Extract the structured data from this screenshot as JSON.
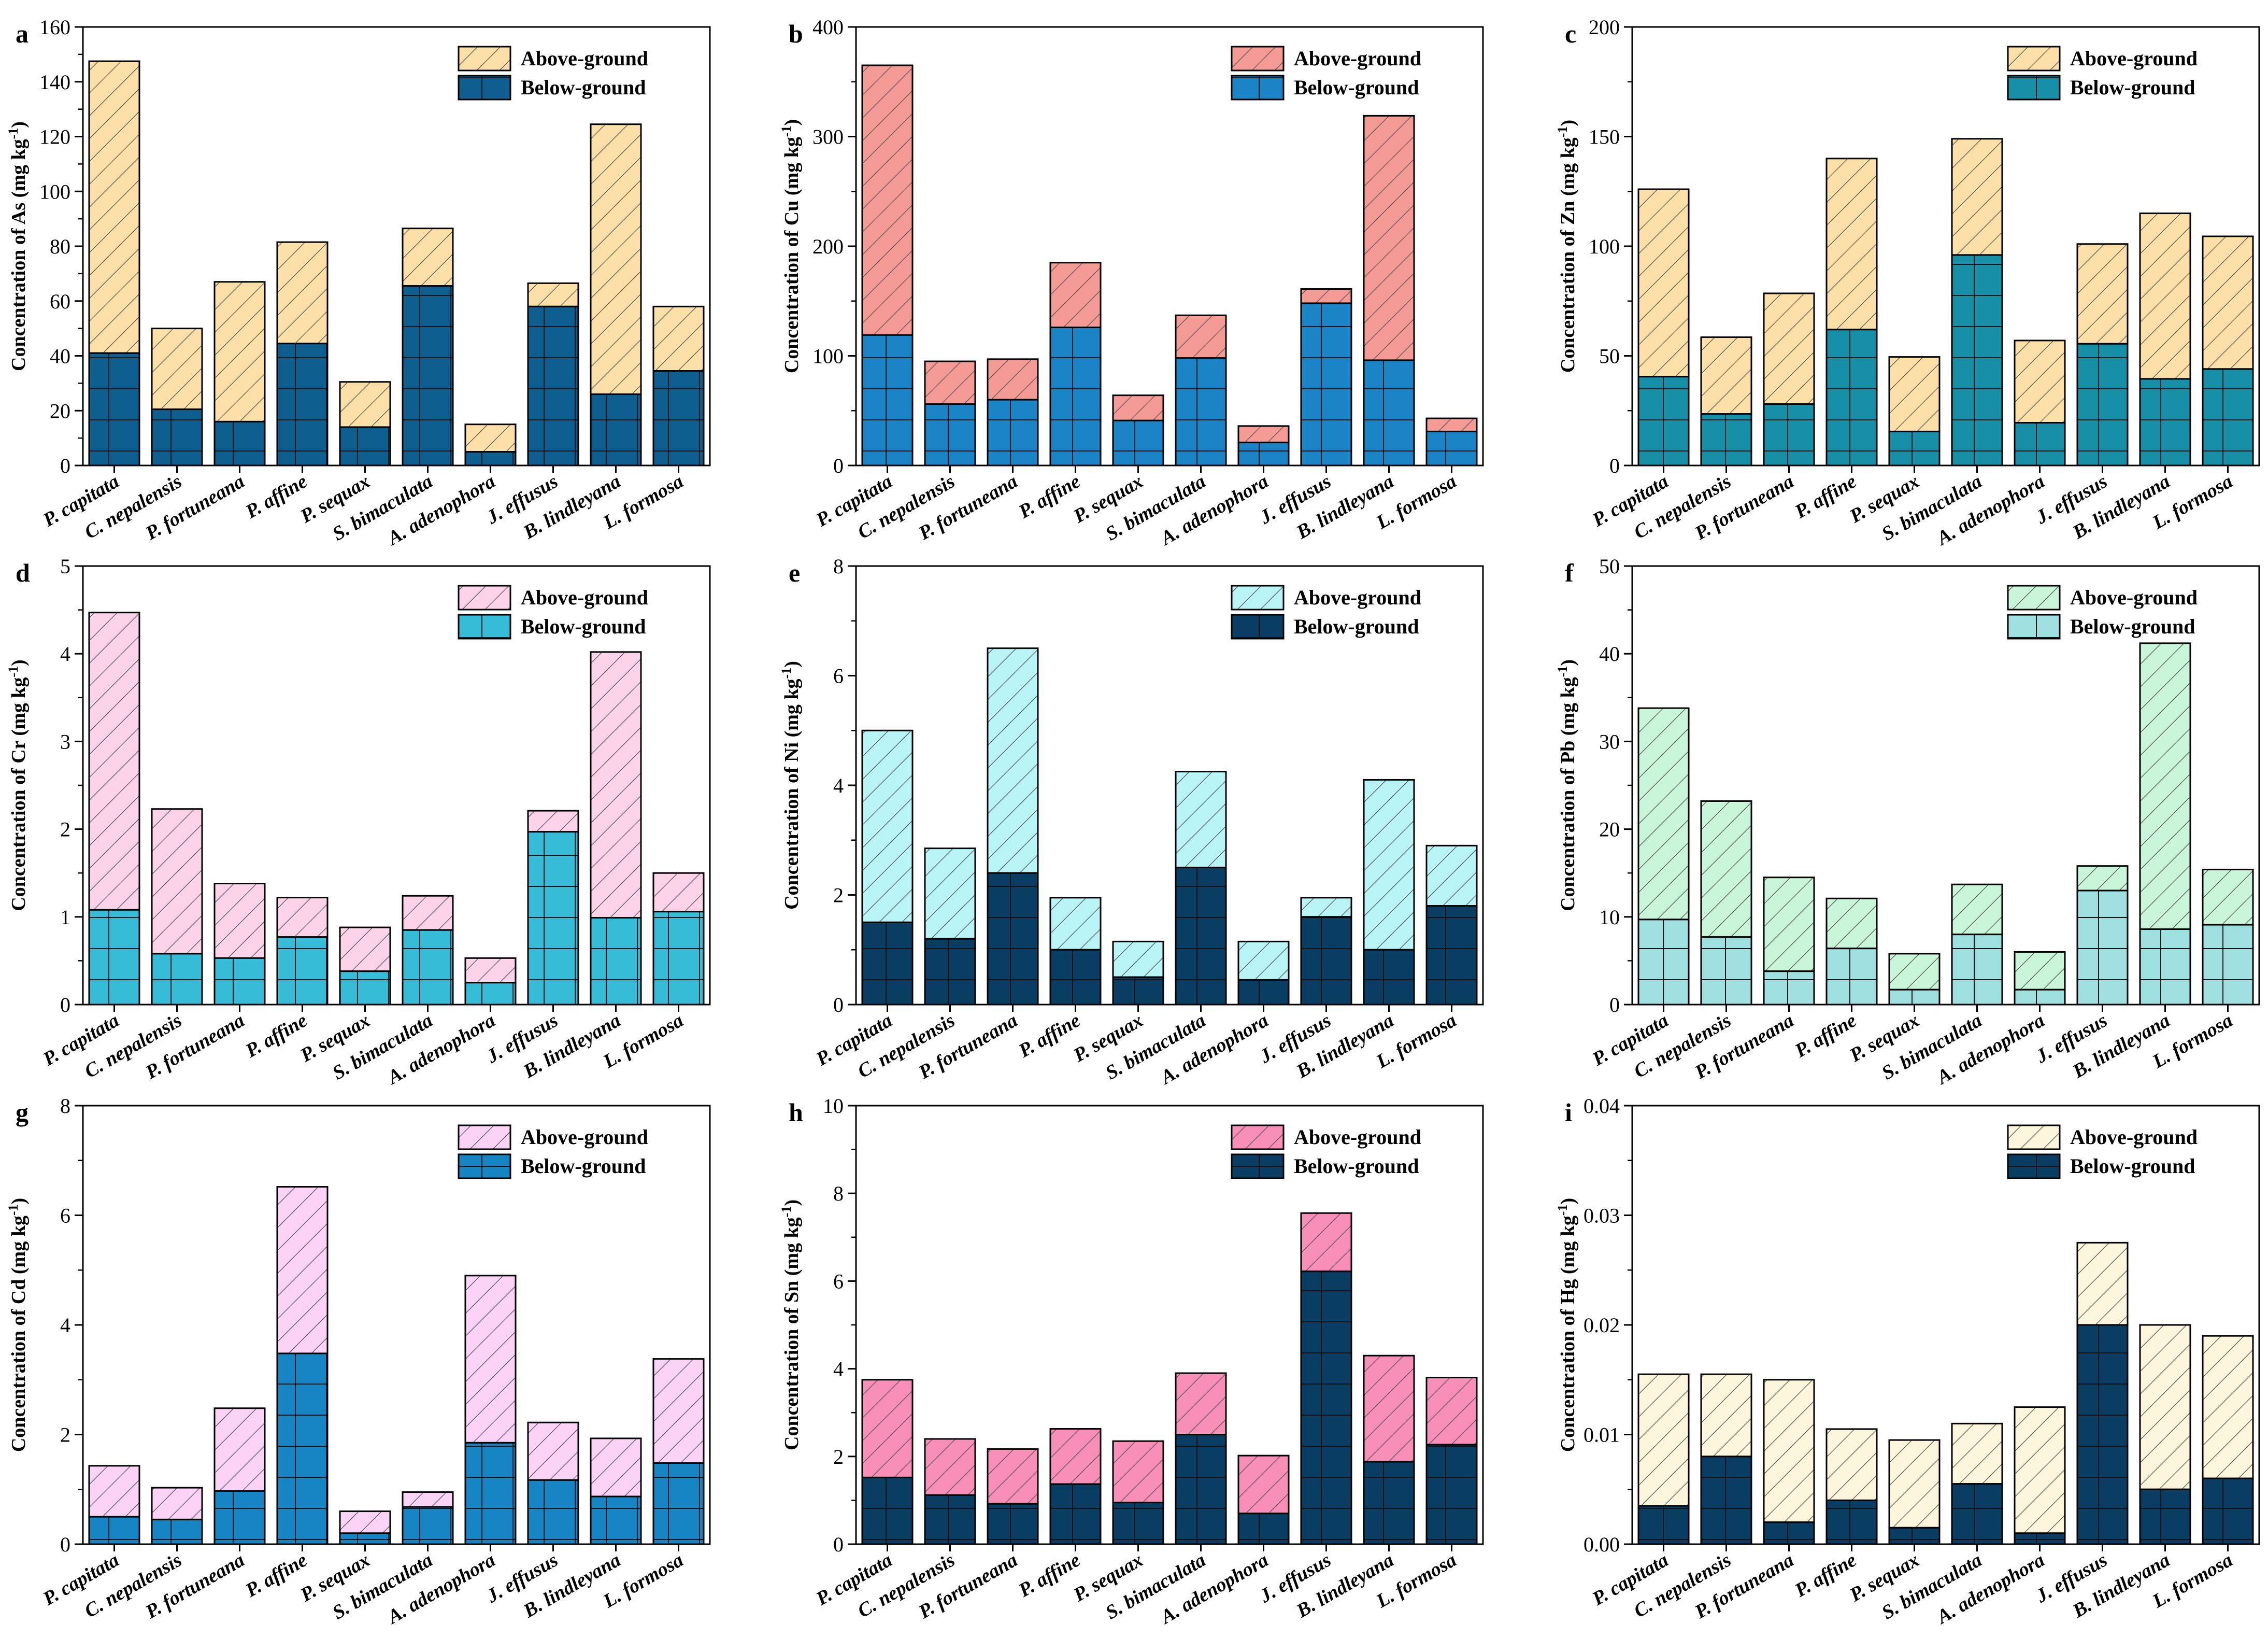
{
  "figure": {
    "species": [
      "P. capitata",
      "C. nepalensis",
      "P. fortuneana",
      "P. affine",
      "P. sequax",
      "S. bimaculata",
      "A. adenophora",
      "J. effusus",
      "B. lindleyana",
      "L. formosa"
    ],
    "legend_above": "Above-ground",
    "legend_below": "Below-ground",
    "unit_text": "(mg kg",
    "unit_sup": "-1",
    "unit_close": ")"
  },
  "chart_data": [
    {
      "panel": "a",
      "type": "bar",
      "stacked": true,
      "element": "As",
      "ylabel_prefix": "Concentration of As ",
      "ylim": [
        0,
        160
      ],
      "yticks": [
        0,
        20,
        40,
        60,
        80,
        100,
        120,
        140,
        160
      ],
      "tick_labels": [
        "0",
        "20",
        "40",
        "60",
        "80",
        "100",
        "120",
        "140",
        "160"
      ],
      "below": [
        41,
        20.5,
        16,
        44.5,
        14,
        65.5,
        5,
        58,
        26,
        34.5
      ],
      "total": [
        147.5,
        50,
        67,
        81.5,
        30.5,
        86.5,
        15,
        66.5,
        124.5,
        58
      ],
      "colors": {
        "above": "#fde0a8",
        "below": "#0e5f8f",
        "above_pattern": "diag",
        "below_pattern": "grid"
      },
      "legend_position": "top-right"
    },
    {
      "panel": "b",
      "type": "bar",
      "stacked": true,
      "element": "Cu",
      "ylabel_prefix": "Concentration of Cu ",
      "ylim": [
        0,
        400
      ],
      "yticks": [
        0,
        100,
        200,
        300,
        400
      ],
      "tick_labels": [
        "0",
        "100",
        "200",
        "300",
        "400"
      ],
      "below": [
        119,
        56,
        60,
        126,
        41,
        98,
        21,
        148,
        96,
        31
      ],
      "total": [
        365,
        95,
        97,
        185,
        64,
        137,
        36,
        161,
        319,
        43
      ],
      "colors": {
        "above": "#f59b96",
        "below": "#1a84c7",
        "above_pattern": "diag",
        "below_pattern": "grid"
      },
      "legend_position": "top-right"
    },
    {
      "panel": "c",
      "type": "bar",
      "stacked": true,
      "element": "Zn",
      "ylabel_prefix": "Concentration of Zn ",
      "ylim": [
        0,
        200
      ],
      "yticks": [
        0,
        50,
        100,
        150,
        200
      ],
      "tick_labels": [
        "0",
        "50",
        "100",
        "150",
        "200"
      ],
      "below": [
        40.5,
        23.5,
        28,
        62,
        15.5,
        96,
        19.5,
        55.5,
        39.5,
        44
      ],
      "total": [
        126,
        58.5,
        78.5,
        140,
        49.5,
        149,
        57,
        101,
        115,
        104.5
      ],
      "colors": {
        "above": "#fde0a8",
        "below": "#178fa6",
        "above_pattern": "diag",
        "below_pattern": "grid"
      },
      "legend_position": "top-right"
    },
    {
      "panel": "d",
      "type": "bar",
      "stacked": true,
      "element": "Cr",
      "ylabel_prefix": "Concentration of Cr ",
      "ylim": [
        0,
        5
      ],
      "yticks": [
        0,
        1,
        2,
        3,
        4,
        5
      ],
      "tick_labels": [
        "0",
        "1",
        "2",
        "3",
        "4",
        "5"
      ],
      "below": [
        1.08,
        0.58,
        0.53,
        0.77,
        0.38,
        0.85,
        0.25,
        1.97,
        0.99,
        1.06
      ],
      "total": [
        4.47,
        2.23,
        1.38,
        1.22,
        0.88,
        1.24,
        0.53,
        2.21,
        4.02,
        1.5
      ],
      "colors": {
        "above": "#fcd3e8",
        "below": "#36bcd6",
        "above_pattern": "diag",
        "below_pattern": "grid"
      },
      "legend_position": "top-right"
    },
    {
      "panel": "e",
      "type": "bar",
      "stacked": true,
      "element": "Ni",
      "ylabel_prefix": "Concentration of Ni ",
      "ylim": [
        0,
        8
      ],
      "yticks": [
        0,
        2,
        4,
        6,
        8
      ],
      "tick_labels": [
        "0",
        "2",
        "4",
        "6",
        "8"
      ],
      "below": [
        1.5,
        1.2,
        2.4,
        1.0,
        0.5,
        2.5,
        0.45,
        1.6,
        1.0,
        1.8
      ],
      "total": [
        5.0,
        2.85,
        6.5,
        1.95,
        1.15,
        4.25,
        1.15,
        1.95,
        4.1,
        2.9
      ],
      "colors": {
        "above": "#b9f5f7",
        "below": "#0a3d62",
        "above_pattern": "diag",
        "below_pattern": "grid"
      },
      "legend_position": "top-right"
    },
    {
      "panel": "f",
      "type": "bar",
      "stacked": true,
      "element": "Pb",
      "ylabel_prefix": "Concentration of Pb ",
      "ylim": [
        0,
        50
      ],
      "yticks": [
        0,
        10,
        20,
        30,
        40,
        50
      ],
      "tick_labels": [
        "0",
        "10",
        "20",
        "30",
        "40",
        "50"
      ],
      "below": [
        9.7,
        7.7,
        3.8,
        6.4,
        1.7,
        8.0,
        1.7,
        13.0,
        8.6,
        9.1
      ],
      "total": [
        33.8,
        23.2,
        14.5,
        12.1,
        5.8,
        13.7,
        6.0,
        15.8,
        41.2,
        15.4
      ],
      "colors": {
        "above": "#c9f5d8",
        "below": "#9ee0e0",
        "above_pattern": "diag",
        "below_pattern": "grid"
      },
      "legend_position": "top-right"
    },
    {
      "panel": "g",
      "type": "bar",
      "stacked": true,
      "element": "Cd",
      "ylabel_prefix": "Concentration of Cd ",
      "ylim": [
        0,
        8
      ],
      "yticks": [
        0,
        2,
        4,
        6,
        8
      ],
      "tick_labels": [
        "0",
        "2",
        "4",
        "6",
        "8"
      ],
      "below": [
        0.5,
        0.45,
        0.97,
        3.48,
        0.2,
        0.68,
        1.85,
        1.17,
        0.87,
        1.48
      ],
      "total": [
        1.43,
        1.03,
        2.48,
        6.52,
        0.6,
        0.95,
        4.9,
        2.22,
        1.93,
        3.38
      ],
      "colors": {
        "above": "#fbd3f6",
        "below": "#1785c4",
        "above_pattern": "diag",
        "below_pattern": "grid"
      },
      "legend_position": "top-right"
    },
    {
      "panel": "h",
      "type": "bar",
      "stacked": true,
      "element": "Sn",
      "ylabel_prefix": "Concentration of Sn ",
      "ylim": [
        0,
        10
      ],
      "yticks": [
        0,
        2,
        4,
        6,
        8,
        10
      ],
      "tick_labels": [
        "0",
        "2",
        "4",
        "6",
        "8",
        "10"
      ],
      "below": [
        1.52,
        1.12,
        0.92,
        1.37,
        0.95,
        2.5,
        0.7,
        6.22,
        1.88,
        2.27
      ],
      "total": [
        3.75,
        2.4,
        2.17,
        2.63,
        2.35,
        3.9,
        2.02,
        7.55,
        4.3,
        3.8
      ],
      "colors": {
        "above": "#f78fb8",
        "below": "#0a3d62",
        "above_pattern": "diag",
        "below_pattern": "grid"
      },
      "legend_position": "top-right"
    },
    {
      "panel": "i",
      "type": "bar",
      "stacked": true,
      "element": "Hg",
      "ylabel_prefix": "Concentration of Hg ",
      "ylim": [
        0,
        0.04
      ],
      "yticks": [
        0,
        0.01,
        0.02,
        0.03,
        0.04
      ],
      "tick_labels": [
        "0.00",
        "0.01",
        "0.02",
        "0.03",
        "0.04"
      ],
      "below": [
        0.0035,
        0.008,
        0.002,
        0.004,
        0.0015,
        0.0055,
        0.001,
        0.02,
        0.005,
        0.006
      ],
      "total": [
        0.0155,
        0.0155,
        0.015,
        0.0105,
        0.0095,
        0.011,
        0.0125,
        0.0275,
        0.02,
        0.019
      ],
      "colors": {
        "above": "#fdf6dc",
        "below": "#0a3d62",
        "above_pattern": "diag",
        "below_pattern": "grid"
      },
      "legend_position": "top-right"
    }
  ]
}
